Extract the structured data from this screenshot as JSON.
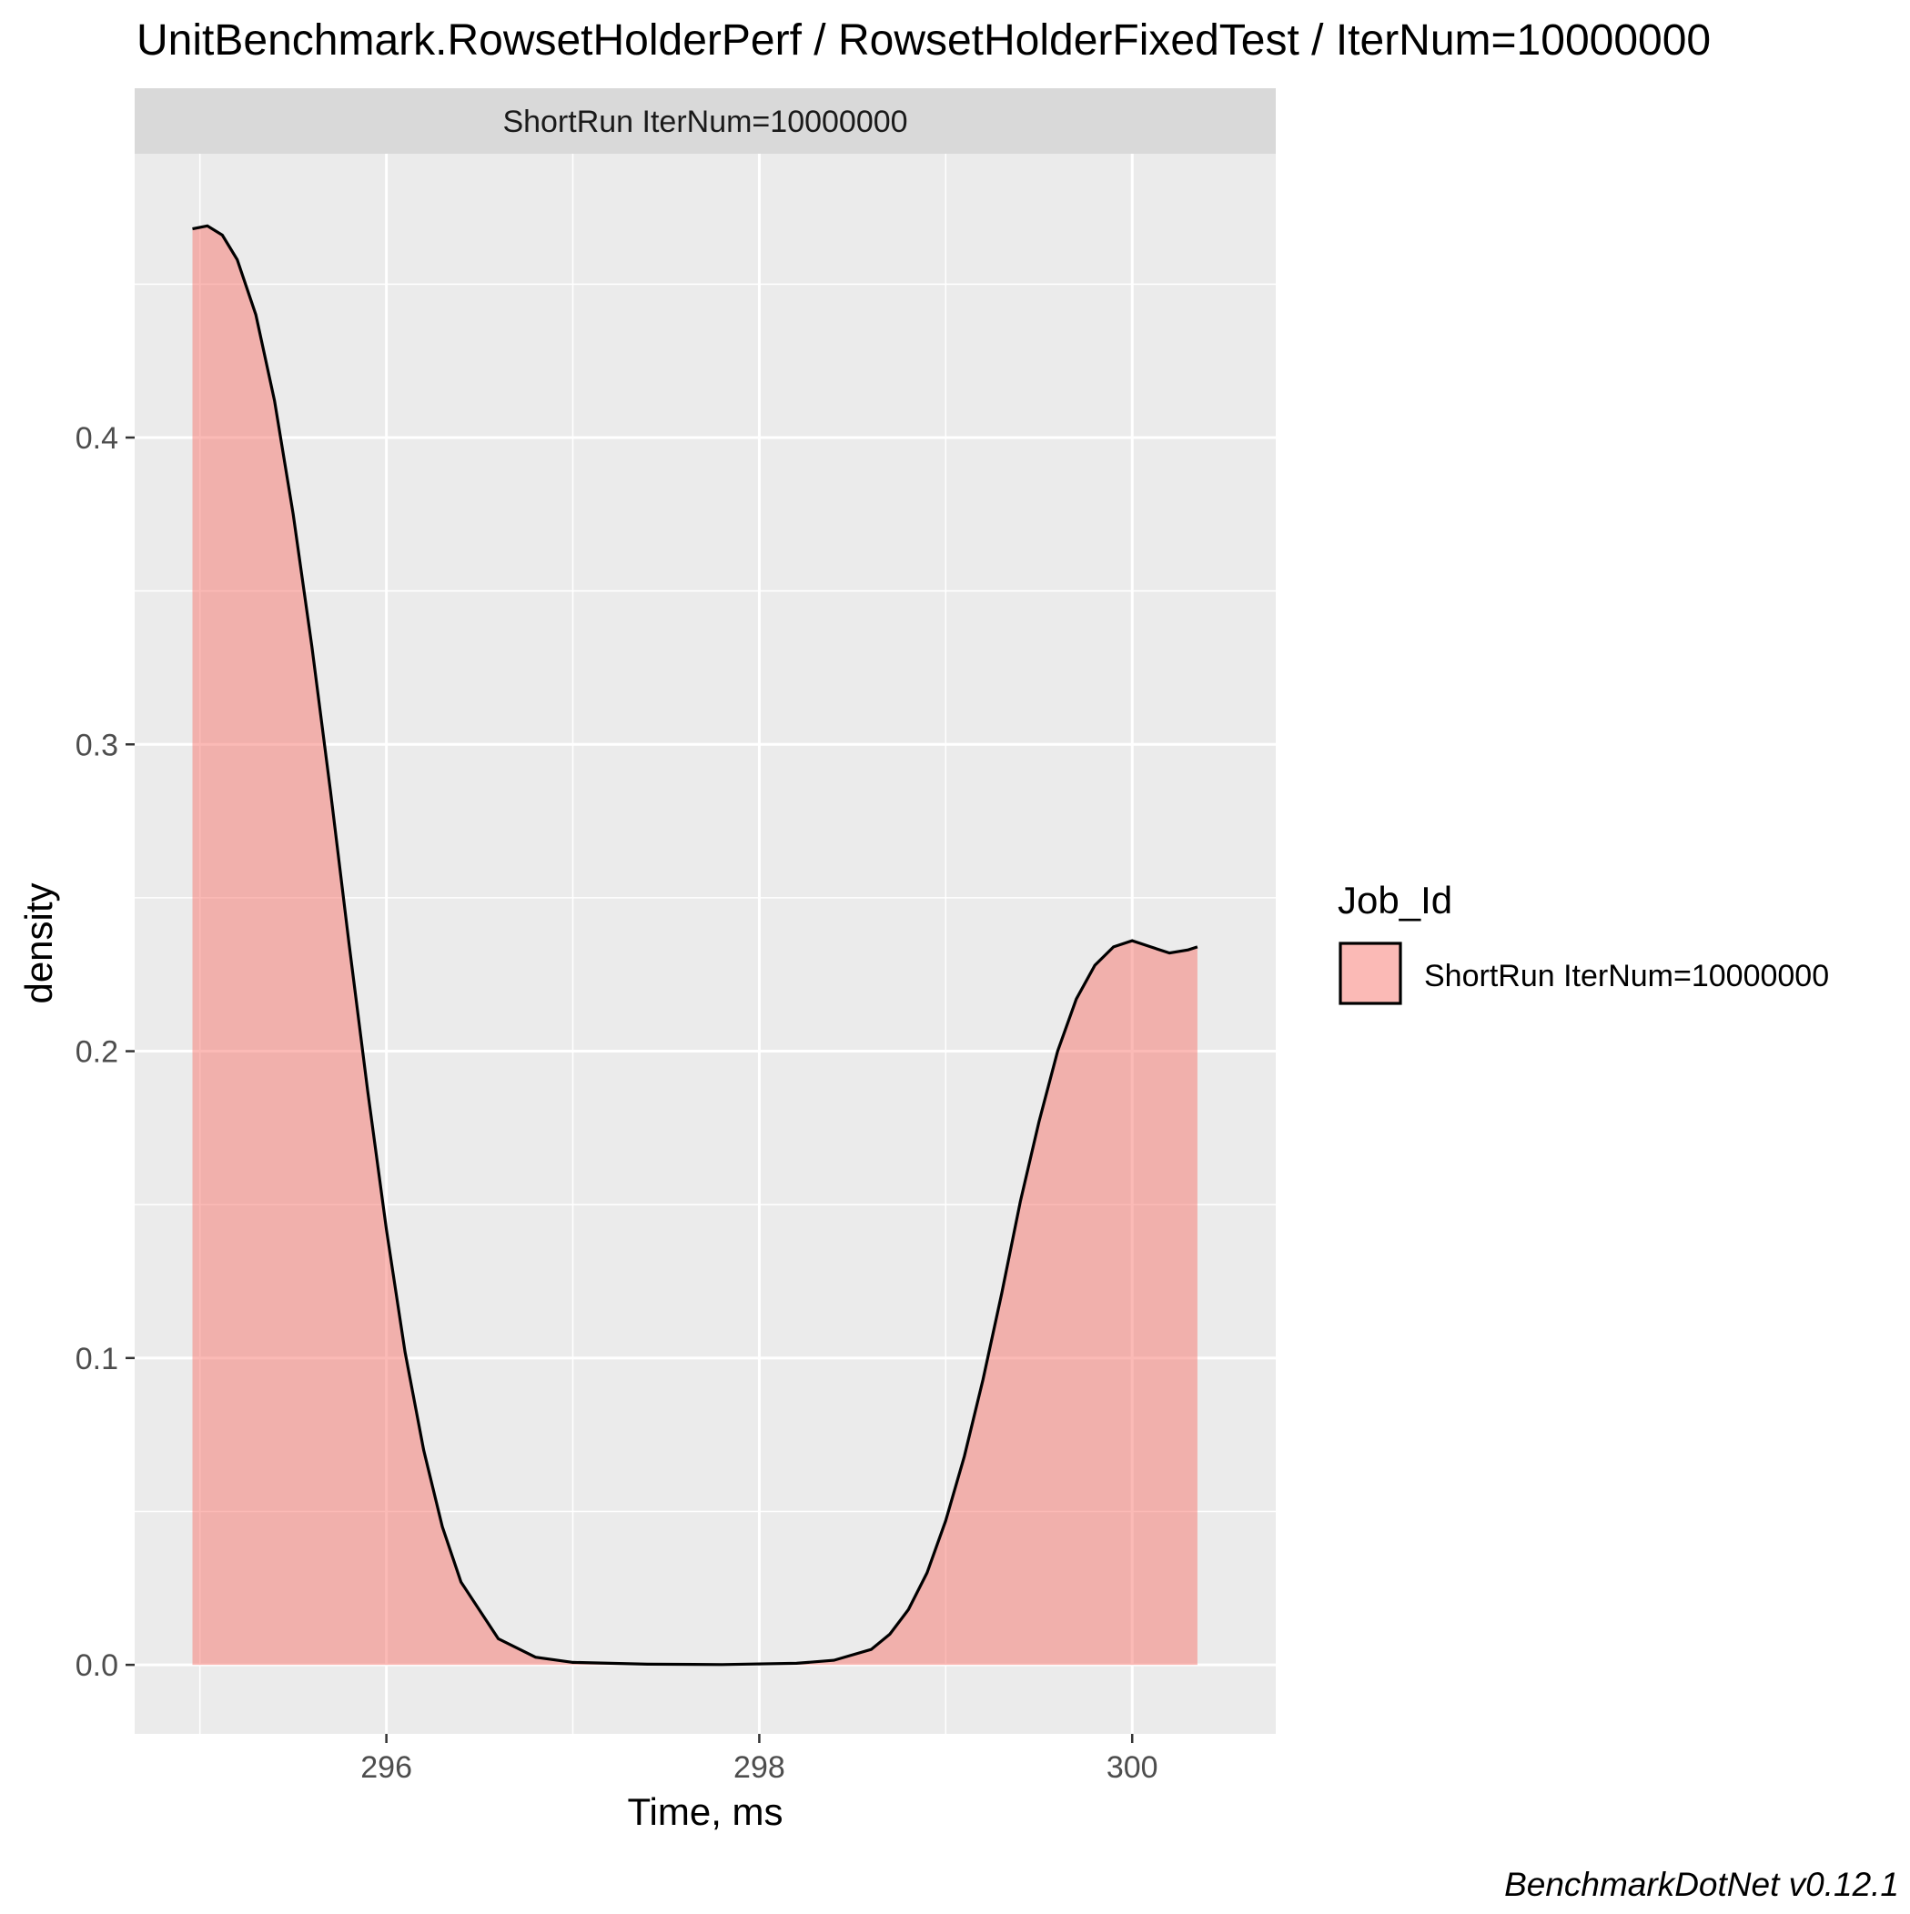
{
  "chart_data": {
    "type": "area",
    "title": "UnitBenchmark.RowsetHolderPerf / RowsetHolderFixedTest / IterNum=10000000",
    "facet_label": "ShortRun IterNum=10000000",
    "xlabel": "Time, ms",
    "ylabel": "density",
    "xlim": [
      294.65,
      300.77
    ],
    "ylim": [
      -0.0225,
      0.4925
    ],
    "x_ticks": [
      296,
      298,
      300
    ],
    "x_tick_labels": [
      "296",
      "298",
      "300"
    ],
    "y_ticks": [
      0.0,
      0.1,
      0.2,
      0.3,
      0.4
    ],
    "y_tick_labels": [
      "0.0",
      "0.1",
      "0.2",
      "0.3",
      "0.4"
    ],
    "grid": true,
    "legend": {
      "title": "Job_Id",
      "placement": "right",
      "entries": [
        "ShortRun IterNum=10000000"
      ]
    },
    "series": [
      {
        "name": "ShortRun IterNum=10000000",
        "fill_color": "#f8766d",
        "fill_opacity": 0.5,
        "line_color": "#000000",
        "x": [
          294.96,
          295.04,
          295.12,
          295.2,
          295.3,
          295.4,
          295.5,
          295.6,
          295.7,
          295.8,
          295.9,
          296.0,
          296.1,
          296.2,
          296.3,
          296.4,
          296.6,
          296.8,
          297.0,
          297.4,
          297.8,
          298.2,
          298.4,
          298.6,
          298.7,
          298.8,
          298.9,
          299.0,
          299.1,
          299.2,
          299.3,
          299.4,
          299.5,
          299.6,
          299.7,
          299.8,
          299.9,
          300.0,
          300.1,
          300.2,
          300.3,
          300.35
        ],
        "y": [
          0.468,
          0.469,
          0.466,
          0.458,
          0.44,
          0.412,
          0.375,
          0.332,
          0.285,
          0.235,
          0.187,
          0.142,
          0.102,
          0.07,
          0.045,
          0.027,
          0.0085,
          0.0025,
          0.0008,
          0.0002,
          0.0001,
          0.0005,
          0.0015,
          0.005,
          0.01,
          0.018,
          0.03,
          0.047,
          0.068,
          0.093,
          0.121,
          0.151,
          0.177,
          0.2,
          0.217,
          0.228,
          0.234,
          0.236,
          0.234,
          0.232,
          0.233,
          0.234
        ]
      }
    ]
  },
  "footer": "BenchmarkDotNet v0.12.1",
  "colors": {
    "panel_bg": "#ebebeb",
    "strip_bg": "#d9d9d9",
    "grid": "#ffffff",
    "text": "#000000",
    "tick_text": "#4d4d4d"
  }
}
